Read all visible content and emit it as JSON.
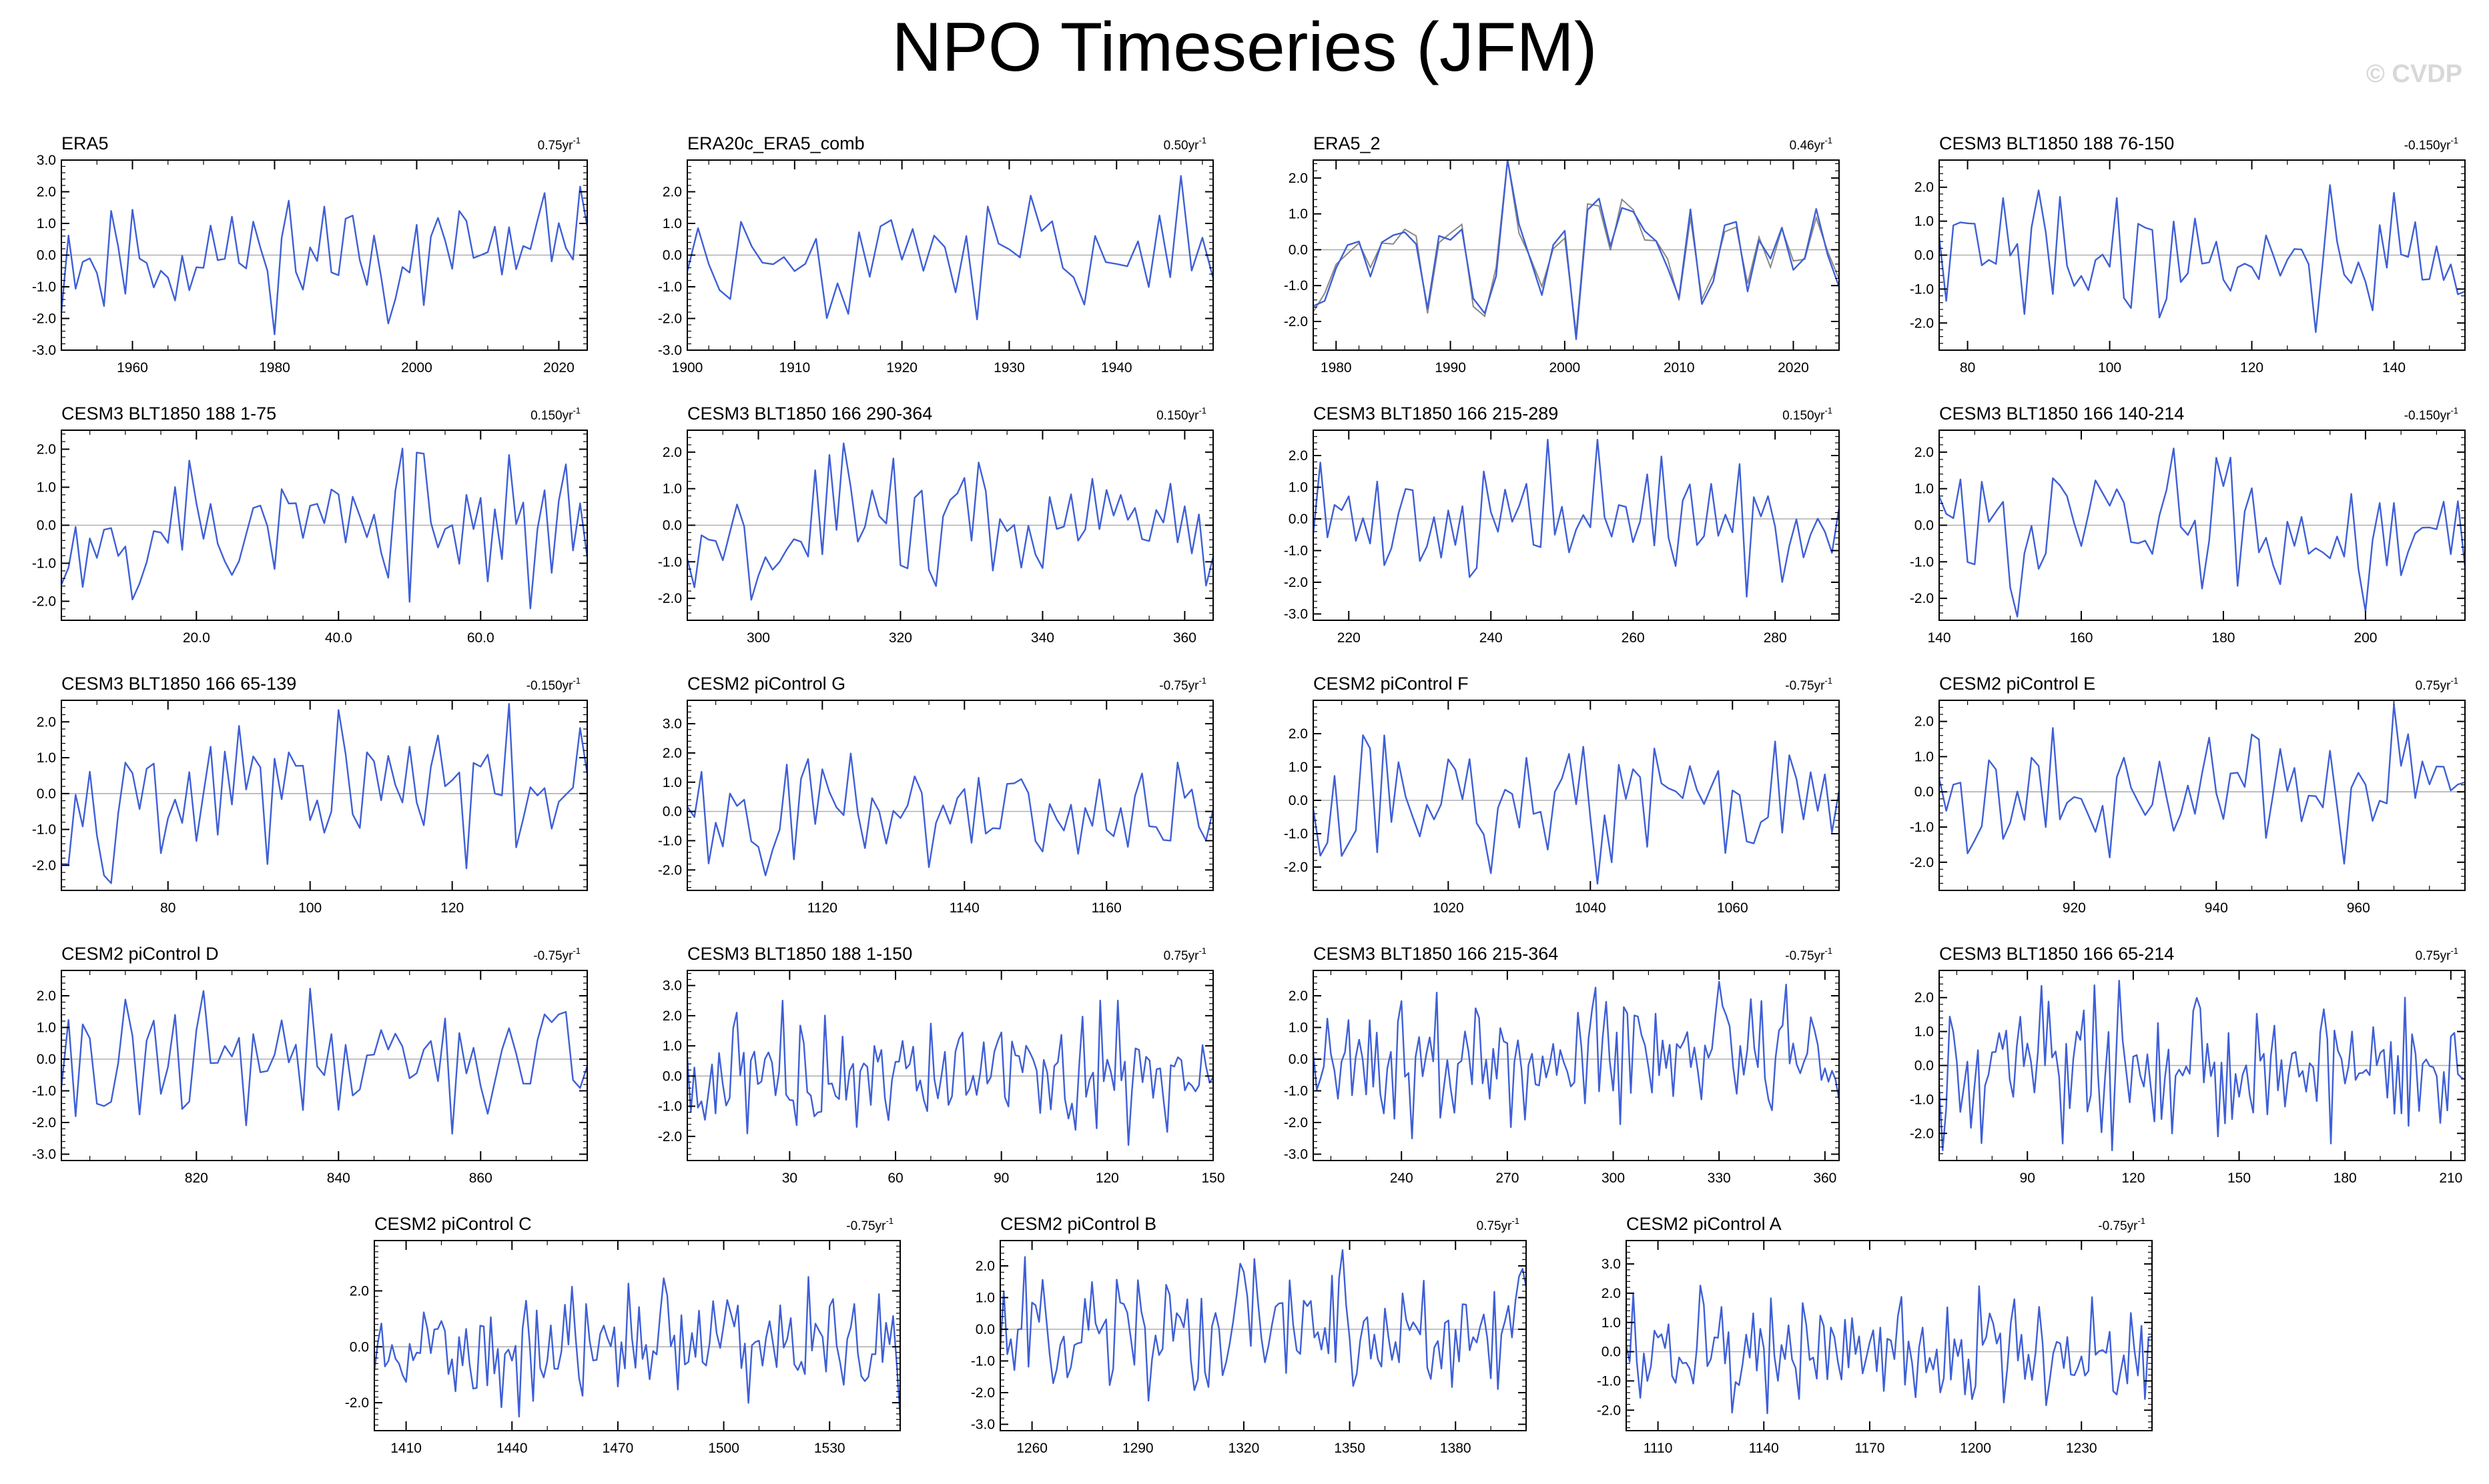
{
  "title": "NPO Timeseries (JFM)",
  "watermark": "© CVDP",
  "colors": {
    "line": "#3e5fd6",
    "ref": "#888888",
    "zero": "#b0b0b0",
    "axis": "#000000"
  },
  "chart_data": [
    {
      "type": "line",
      "title": "ERA5",
      "trend": "0.75yr",
      "trend_exp": "-1",
      "x_start": 1950,
      "x_end": 2024,
      "xticks": [
        "1960",
        "1980",
        "2000",
        "2020"
      ],
      "yticks": [
        "3.0",
        "2.0",
        "1.0",
        "0.0",
        "-1.0",
        "-2.0",
        "-3.0"
      ],
      "ylim": [
        -3,
        3
      ],
      "seed": 11
    },
    {
      "type": "line",
      "title": "ERA20c_ERA5_comb",
      "trend": "0.50yr",
      "trend_exp": "-1",
      "x_start": 1900,
      "x_end": 1949,
      "xticks": [
        "1900",
        "1910",
        "1920",
        "1930",
        "1940"
      ],
      "yticks": [
        "2.0",
        "1.0",
        "0.0",
        "-1.0",
        "-2.0",
        "-3.0"
      ],
      "ylim": [
        -3,
        3
      ],
      "seed": 23
    },
    {
      "type": "line",
      "title": "ERA5_2",
      "trend": "0.46yr",
      "trend_exp": "-1",
      "x_start": 1978,
      "x_end": 2024,
      "xticks": [
        "1980",
        "1990",
        "2000",
        "2010",
        "2020"
      ],
      "yticks": [
        "2.0",
        "1.0",
        "0.0",
        "-1.0",
        "-2.0"
      ],
      "ylim": [
        -2.8,
        2.5
      ],
      "seed": 37,
      "reference": true
    },
    {
      "type": "line",
      "title": "CESM3 BLT1850 188 76-150",
      "trend": "-0.150yr",
      "trend_exp": "-1",
      "x_start": 76,
      "x_end": 150,
      "xticks": [
        "80",
        "100",
        "120",
        "140"
      ],
      "yticks": [
        "2.0",
        "1.0",
        "0.0",
        "-1.0",
        "-2.0"
      ],
      "ylim": [
        -2.8,
        2.8
      ],
      "seed": 41
    },
    {
      "type": "line",
      "title": "CESM3 BLT1850 188 1-75",
      "trend": "0.150yr",
      "trend_exp": "-1",
      "x_start": 1,
      "x_end": 75,
      "xticks": [
        "20.0",
        "40.0",
        "60.0"
      ],
      "yticks": [
        "2.0",
        "1.0",
        "0.0",
        "-1.0",
        "-2.0"
      ],
      "ylim": [
        -2.5,
        2.5
      ],
      "seed": 53
    },
    {
      "type": "line",
      "title": "CESM3 BLT1850 166 290-364",
      "trend": "0.150yr",
      "trend_exp": "-1",
      "x_start": 290,
      "x_end": 364,
      "xticks": [
        "300",
        "320",
        "340",
        "360"
      ],
      "yticks": [
        "2.0",
        "1.0",
        "0.0",
        "-1.0",
        "-2.0"
      ],
      "ylim": [
        -2.6,
        2.6
      ],
      "seed": 67
    },
    {
      "type": "line",
      "title": "CESM3 BLT1850 166 215-289",
      "trend": "0.150yr",
      "trend_exp": "-1",
      "x_start": 215,
      "x_end": 289,
      "xticks": [
        "220",
        "240",
        "260",
        "280"
      ],
      "yticks": [
        "2.0",
        "1.0",
        "0.0",
        "-1.0",
        "-2.0",
        "-3.0"
      ],
      "ylim": [
        -3.2,
        2.8
      ],
      "seed": 71
    },
    {
      "type": "line",
      "title": "CESM3 BLT1850 166 140-214",
      "trend": "-0.150yr",
      "trend_exp": "-1",
      "x_start": 140,
      "x_end": 214,
      "xticks": [
        "140",
        "160",
        "180",
        "200"
      ],
      "yticks": [
        "2.0",
        "1.0",
        "0.0",
        "-1.0",
        "-2.0"
      ],
      "ylim": [
        -2.6,
        2.6
      ],
      "seed": 83
    },
    {
      "type": "line",
      "title": "CESM3 BLT1850 166 65-139",
      "trend": "-0.150yr",
      "trend_exp": "-1",
      "x_start": 65,
      "x_end": 139,
      "xticks": [
        "80",
        "100",
        "120"
      ],
      "yticks": [
        "2.0",
        "1.0",
        "0.0",
        "-1.0",
        "-2.0"
      ],
      "ylim": [
        -2.7,
        2.6
      ],
      "seed": 97
    },
    {
      "type": "line",
      "title": "CESM2 piControl G",
      "trend": "-0.75yr",
      "trend_exp": "-1",
      "x_start": 1101,
      "x_end": 1175,
      "xticks": [
        "1120",
        "1140",
        "1160"
      ],
      "yticks": [
        "3.0",
        "2.0",
        "1.0",
        "0.0",
        "-1.0",
        "-2.0"
      ],
      "ylim": [
        -2.7,
        3.8
      ],
      "seed": 101
    },
    {
      "type": "line",
      "title": "CESM2 piControl F",
      "trend": "-0.75yr",
      "trend_exp": "-1",
      "x_start": 1001,
      "x_end": 1075,
      "xticks": [
        "1020",
        "1040",
        "1060"
      ],
      "yticks": [
        "2.0",
        "1.0",
        "0.0",
        "-1.0",
        "-2.0"
      ],
      "ylim": [
        -2.7,
        3.0
      ],
      "seed": 113
    },
    {
      "type": "line",
      "title": "CESM2 piControl E",
      "trend": "0.75yr",
      "trend_exp": "-1",
      "x_start": 901,
      "x_end": 975,
      "xticks": [
        "920",
        "940",
        "960"
      ],
      "yticks": [
        "2.0",
        "1.0",
        "0.0",
        "-1.0",
        "-2.0"
      ],
      "ylim": [
        -2.8,
        2.6
      ],
      "seed": 127
    },
    {
      "type": "line",
      "title": "CESM2 piControl D",
      "trend": "-0.75yr",
      "trend_exp": "-1",
      "x_start": 801,
      "x_end": 875,
      "xticks": [
        "820",
        "840",
        "860"
      ],
      "yticks": [
        "2.0",
        "1.0",
        "0.0",
        "-1.0",
        "-2.0",
        "-3.0"
      ],
      "ylim": [
        -3.2,
        2.8
      ],
      "seed": 131
    },
    {
      "type": "line",
      "title": "CESM3 BLT1850 188 1-150",
      "trend": "0.75yr",
      "trend_exp": "-1",
      "x_start": 1,
      "x_end": 150,
      "xticks": [
        "30",
        "60",
        "90",
        "120",
        "150"
      ],
      "yticks": [
        "3.0",
        "2.0",
        "1.0",
        "0.0",
        "-1.0",
        "-2.0"
      ],
      "ylim": [
        -2.8,
        3.5
      ],
      "seed": 137
    },
    {
      "type": "line",
      "title": "CESM3 BLT1850 166 215-364",
      "trend": "-0.75yr",
      "trend_exp": "-1",
      "x_start": 215,
      "x_end": 364,
      "xticks": [
        "240",
        "270",
        "300",
        "330",
        "360"
      ],
      "yticks": [
        "2.0",
        "1.0",
        "0.0",
        "-1.0",
        "-2.0",
        "-3.0"
      ],
      "ylim": [
        -3.2,
        2.8
      ],
      "seed": 149
    },
    {
      "type": "line",
      "title": "CESM3 BLT1850 166 65-214",
      "trend": "0.75yr",
      "trend_exp": "-1",
      "x_start": 65,
      "x_end": 214,
      "xticks": [
        "90",
        "120",
        "150",
        "180",
        "210"
      ],
      "yticks": [
        "2.0",
        "1.0",
        "0.0",
        "-1.0",
        "-2.0"
      ],
      "ylim": [
        -2.8,
        2.8
      ],
      "seed": 157
    },
    {
      "type": "line",
      "title": "CESM2 piControl C",
      "trend": "-0.75yr",
      "trend_exp": "-1",
      "x_start": 1401,
      "x_end": 1550,
      "xticks": [
        "1410",
        "1440",
        "1470",
        "1500",
        "1530"
      ],
      "yticks": [
        "2.0",
        "0.0",
        "-2.0"
      ],
      "ylim": [
        -3.0,
        3.8
      ],
      "seed": 163
    },
    {
      "type": "line",
      "title": "CESM2 piControl B",
      "trend": "0.75yr",
      "trend_exp": "-1",
      "x_start": 1251,
      "x_end": 1400,
      "xticks": [
        "1260",
        "1290",
        "1320",
        "1350",
        "1380"
      ],
      "yticks": [
        "2.0",
        "1.0",
        "0.0",
        "-1.0",
        "-2.0",
        "-3.0"
      ],
      "ylim": [
        -3.2,
        2.8
      ],
      "seed": 173
    },
    {
      "type": "line",
      "title": "CESM2 piControl A",
      "trend": "-0.75yr",
      "trend_exp": "-1",
      "x_start": 1101,
      "x_end": 1250,
      "xticks": [
        "1110",
        "1140",
        "1170",
        "1200",
        "1230"
      ],
      "yticks": [
        "3.0",
        "2.0",
        "1.0",
        "0.0",
        "-1.0",
        "-2.0"
      ],
      "ylim": [
        -2.7,
        3.8
      ],
      "seed": 181
    }
  ]
}
